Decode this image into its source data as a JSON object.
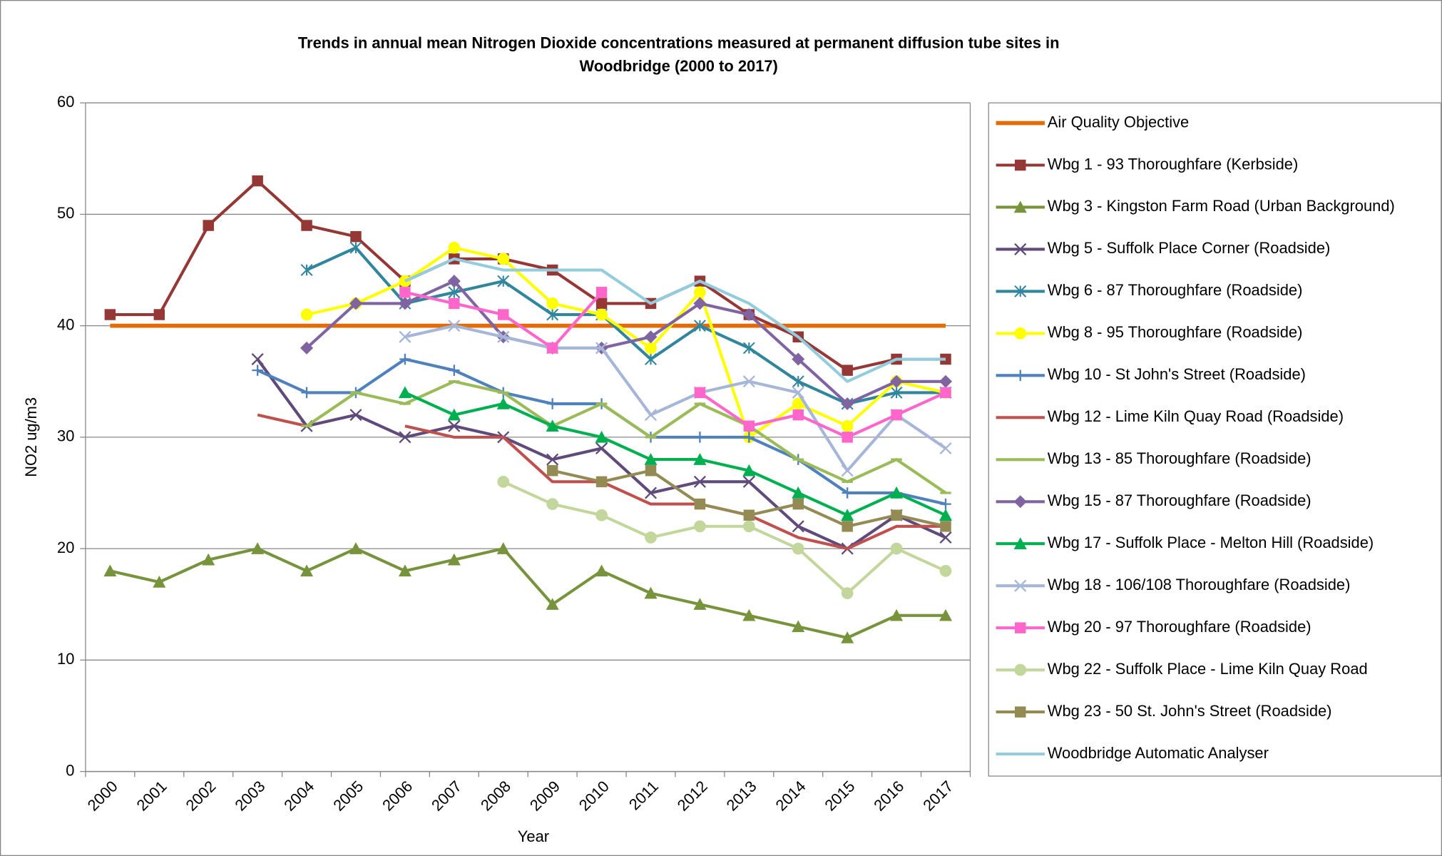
{
  "chart_data": {
    "type": "line",
    "title": [
      "Trends in annual mean Nitrogen Dioxide concentrations measured at permanent diffusion tube sites in",
      "Woodbridge (2000 to 2017)"
    ],
    "x_label": "Year",
    "y_label": "NO2 ug/m3",
    "categories": [
      "2000",
      "2001",
      "2002",
      "2003",
      "2004",
      "2005",
      "2006",
      "2007",
      "2008",
      "2009",
      "2010",
      "2011",
      "2012",
      "2013",
      "2014",
      "2015",
      "2016",
      "2017"
    ],
    "ylim": [
      0,
      60
    ],
    "yticks": [
      0,
      10,
      20,
      30,
      40,
      50,
      60
    ],
    "grid": true,
    "legend": "right",
    "series": [
      {
        "name": "Air Quality Objective",
        "color": "#e36c0a",
        "marker": "none",
        "values": [
          40,
          40,
          40,
          40,
          40,
          40,
          40,
          40,
          40,
          40,
          40,
          40,
          40,
          40,
          40,
          40,
          40,
          40
        ]
      },
      {
        "name": "Wbg 1 - 93 Thoroughfare (Kerbside)",
        "color": "#953735",
        "marker": "square",
        "values": [
          41,
          41,
          49,
          53,
          49,
          48,
          44,
          46,
          46,
          45,
          42,
          42,
          44,
          41,
          39,
          36,
          37,
          37
        ]
      },
      {
        "name": "Wbg 3 - Kingston Farm Road (Urban Background)",
        "color": "#77933c",
        "marker": "triangle",
        "values": [
          18,
          17,
          19,
          20,
          18,
          20,
          18,
          19,
          20,
          15,
          18,
          16,
          15,
          14,
          13,
          12,
          14,
          14
        ]
      },
      {
        "name": "Wbg 5 - Suffolk Place Corner (Roadside)",
        "color": "#604a7b",
        "marker": "x",
        "values": [
          null,
          null,
          null,
          37,
          31,
          32,
          30,
          31,
          30,
          28,
          29,
          25,
          26,
          26,
          22,
          20,
          23,
          21
        ]
      },
      {
        "name": "Wbg 6 - 87 Thoroughfare (Roadside)",
        "color": "#31859c",
        "marker": "asterisk",
        "values": [
          null,
          null,
          null,
          null,
          45,
          47,
          42,
          43,
          44,
          41,
          41,
          37,
          40,
          38,
          35,
          33,
          34,
          34
        ]
      },
      {
        "name": "Wbg 8 - 95 Thoroughfare (Roadside)",
        "color": "#ffff00",
        "marker": "circle",
        "values": [
          null,
          null,
          null,
          null,
          41,
          42,
          44,
          47,
          46,
          42,
          41,
          38,
          43,
          30,
          33,
          31,
          35,
          34
        ]
      },
      {
        "name": "Wbg 10 - St John's Street (Roadside)",
        "color": "#4f81bd",
        "marker": "plus",
        "values": [
          null,
          null,
          null,
          36,
          34,
          34,
          37,
          36,
          34,
          33,
          33,
          30,
          30,
          30,
          28,
          25,
          25,
          24
        ]
      },
      {
        "name": "Wbg 12 - Lime Kiln Quay Road (Roadside)",
        "color": "#c0504d",
        "marker": "none",
        "values": [
          null,
          null,
          null,
          32,
          31,
          null,
          31,
          30,
          30,
          26,
          26,
          24,
          24,
          23,
          21,
          20,
          22,
          22
        ]
      },
      {
        "name": "Wbg 13 - 85 Thoroughfare (Roadside)",
        "color": "#9bbb59",
        "marker": "dash",
        "values": [
          null,
          null,
          null,
          null,
          31,
          34,
          33,
          35,
          34,
          31,
          33,
          30,
          33,
          31,
          28,
          26,
          28,
          25
        ]
      },
      {
        "name": "Wbg 15 - 87 Thoroughfare (Roadside)",
        "color": "#8064a2",
        "marker": "diamond",
        "values": [
          null,
          null,
          null,
          null,
          38,
          42,
          42,
          44,
          39,
          38,
          38,
          39,
          42,
          41,
          37,
          33,
          35,
          35
        ]
      },
      {
        "name": "Wbg 17 - Suffolk Place - Melton Hill (Roadside)",
        "color": "#00b050",
        "marker": "triangle",
        "values": [
          null,
          null,
          null,
          null,
          null,
          null,
          34,
          32,
          33,
          31,
          30,
          28,
          28,
          27,
          25,
          23,
          25,
          23
        ]
      },
      {
        "name": "Wbg 18 - 106/108 Thoroughfare (Roadside)",
        "color": "#a6b6d8",
        "marker": "x",
        "values": [
          null,
          null,
          null,
          null,
          null,
          null,
          39,
          40,
          39,
          38,
          38,
          32,
          34,
          35,
          34,
          27,
          32,
          29
        ]
      },
      {
        "name": "Wbg 20 - 97 Thoroughfare (Roadside)",
        "color": "#ff66cc",
        "marker": "square",
        "values": [
          null,
          null,
          null,
          null,
          null,
          null,
          43,
          42,
          41,
          38,
          43,
          null,
          34,
          31,
          32,
          30,
          32,
          34
        ]
      },
      {
        "name": "Wbg 22 - Suffolk Place - Lime Kiln Quay Road",
        "color": "#c3d69b",
        "marker": "circle",
        "values": [
          null,
          null,
          null,
          null,
          null,
          null,
          null,
          null,
          26,
          24,
          23,
          21,
          22,
          22,
          20,
          16,
          20,
          18
        ]
      },
      {
        "name": "Wbg 23 - 50 St. John's Street (Roadside)",
        "color": "#948a54",
        "marker": "square",
        "values": [
          null,
          null,
          null,
          null,
          null,
          null,
          null,
          null,
          null,
          27,
          26,
          27,
          24,
          23,
          24,
          22,
          23,
          22
        ]
      },
      {
        "name": "Woodbridge Automatic Analyser",
        "color": "#93cddd",
        "marker": "none",
        "values": [
          null,
          null,
          null,
          null,
          null,
          null,
          44,
          46,
          45,
          45,
          45,
          42,
          44,
          42,
          39,
          35,
          37,
          37
        ]
      }
    ]
  }
}
